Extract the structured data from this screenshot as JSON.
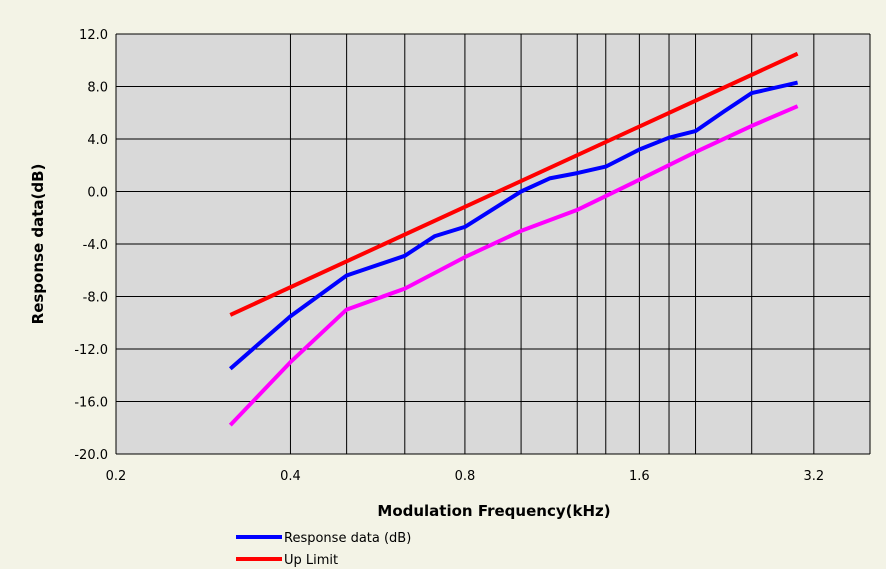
{
  "chart_data": {
    "type": "line",
    "title": "",
    "xlabel": "Modulation Frequency(kHz)",
    "ylabel": "Response data(dB)",
    "x_scale": "log2",
    "xlim": [
      0.2,
      4.0
    ],
    "ylim": [
      -20,
      12
    ],
    "grid": true,
    "legend_position": "bottom",
    "x_ticks": [
      {
        "value": 0.2,
        "label": "0.2"
      },
      {
        "value": 0.4,
        "label": "0.4"
      },
      {
        "value": 0.8,
        "label": "0.8"
      },
      {
        "value": 1.6,
        "label": "1.6"
      },
      {
        "value": 3.2,
        "label": "3.2"
      }
    ],
    "y_ticks": [
      {
        "value": 12,
        "label": "12.0"
      },
      {
        "value": 8,
        "label": "8.0"
      },
      {
        "value": 4,
        "label": "4.0"
      },
      {
        "value": 0,
        "label": "0.0"
      },
      {
        "value": -4,
        "label": "-4.0"
      },
      {
        "value": -8,
        "label": "-8.0"
      },
      {
        "value": -12,
        "label": "-12.0"
      },
      {
        "value": -16,
        "label": "-16.0"
      },
      {
        "value": -20,
        "label": "-20.0"
      }
    ],
    "x_gridlines": [
      0.2,
      0.4,
      0.5,
      0.63,
      0.8,
      1.0,
      1.25,
      1.4,
      1.6,
      1.8,
      2.0,
      2.5,
      3.2,
      4.0
    ],
    "series": [
      {
        "name": "Response data (dB)",
        "color": "#0000ff",
        "x": [
          0.315,
          0.4,
          0.5,
          0.63,
          0.71,
          0.8,
          1.0,
          1.12,
          1.25,
          1.4,
          1.6,
          1.8,
          2.0,
          2.24,
          2.5,
          3.0
        ],
        "y": [
          -13.5,
          -9.5,
          -6.4,
          -4.9,
          -3.4,
          -2.7,
          0.0,
          1.0,
          1.4,
          1.9,
          3.2,
          4.1,
          4.6,
          6.1,
          7.5,
          8.3
        ]
      },
      {
        "name": "Up Limit",
        "color": "#ff0000",
        "x": [
          0.315,
          3.0
        ],
        "y": [
          -9.4,
          10.5
        ]
      },
      {
        "name": "",
        "color": "#ff00ff",
        "x": [
          0.315,
          0.4,
          0.5,
          0.63,
          0.8,
          1.0,
          1.25,
          1.6,
          2.0,
          2.5,
          3.0
        ],
        "y": [
          -17.8,
          -13.0,
          -9.0,
          -7.4,
          -5.0,
          -3.0,
          -1.4,
          0.9,
          3.0,
          5.0,
          6.5
        ]
      }
    ],
    "legend": [
      {
        "label": "Response data (dB)",
        "color": "#0000ff"
      },
      {
        "label": "Up Limit",
        "color": "#ff0000"
      }
    ]
  }
}
